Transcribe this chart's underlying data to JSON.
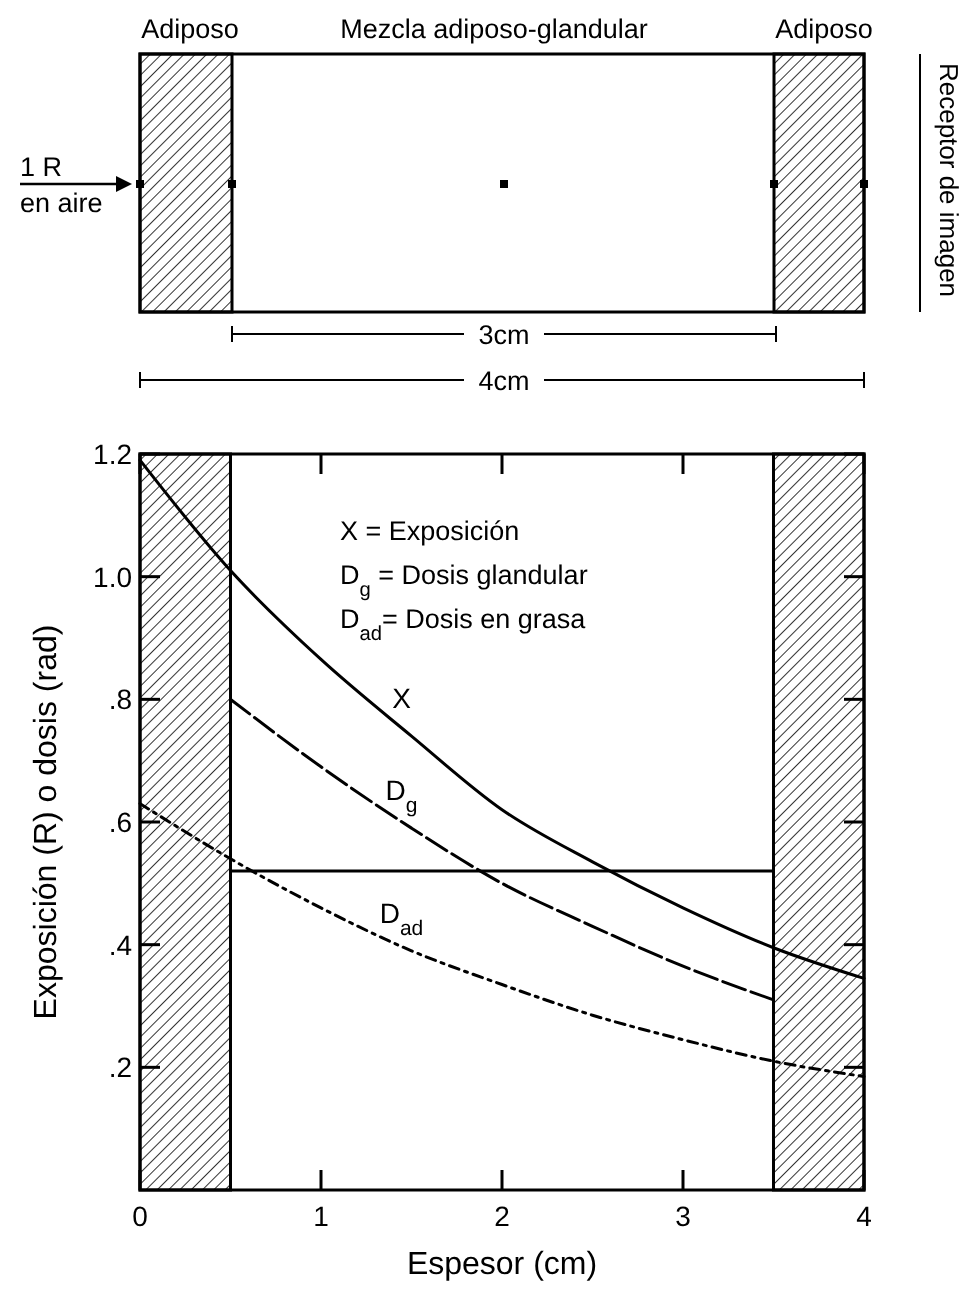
{
  "chart_data": {
    "type": "line",
    "xlabel": "Espesor (cm)",
    "ylabel": "Exposición (R) o dosis (rad)",
    "xlim": [
      0,
      4
    ],
    "xticks": [
      0,
      1,
      2,
      3,
      4
    ],
    "ylim": [
      0,
      1.2
    ],
    "yticks": [
      {
        "value": 0.2,
        "label": ".2"
      },
      {
        "value": 0.4,
        "label": ".4"
      },
      {
        "value": 0.6,
        "label": ".6"
      },
      {
        "value": 0.8,
        "label": ".8"
      },
      {
        "value": 1.0,
        "label": "1.0"
      },
      {
        "value": 1.2,
        "label": "1.2"
      }
    ],
    "grid": false,
    "series": [
      {
        "name": "X",
        "color": "#000000",
        "line_style": "solid",
        "x": [
          0,
          0.5,
          1,
          1.5,
          2,
          2.5,
          3,
          3.5,
          4
        ],
        "values": [
          1.19,
          1.01,
          0.865,
          0.74,
          0.62,
          0.535,
          0.46,
          0.395,
          0.345
        ]
      },
      {
        "name": "D$_{g}$",
        "color": "#000000",
        "line_style": "dashed",
        "x": [
          0.5,
          1,
          1.5,
          2,
          2.5,
          3,
          3.5
        ],
        "values": [
          0.8,
          0.69,
          0.59,
          0.5,
          0.43,
          0.365,
          0.31
        ]
      },
      {
        "name": "D$_{ad}$",
        "color": "#000000",
        "line_style": "dotted",
        "x": [
          0,
          0.5,
          1,
          1.5,
          2,
          2.5,
          3,
          3.5,
          4
        ],
        "values": [
          0.63,
          0.54,
          0.46,
          0.39,
          0.335,
          0.285,
          0.245,
          0.21,
          0.185
        ]
      },
      {
        "type": "line",
        "color": "#000000",
        "line_style": "solid",
        "x": [
          0.5,
          3.5
        ],
        "values": [
          0.52,
          0.52
        ]
      }
    ],
    "bands": [
      {
        "axis": "x",
        "from": 0,
        "to": 0.5
      },
      {
        "axis": "x",
        "from": 3.5,
        "to": 4
      }
    ],
    "annotations": [
      "Adiposo",
      "Mezcla adiposo-glandular",
      "Adiposo",
      "1 R",
      "en aire",
      "Receptor de imagen",
      "3cm",
      "4cm",
      "X    = Exposición",
      "D$_{g}$  = Dosis glandular",
      "D$_{ad}$= Dosis en grasa"
    ]
  }
}
